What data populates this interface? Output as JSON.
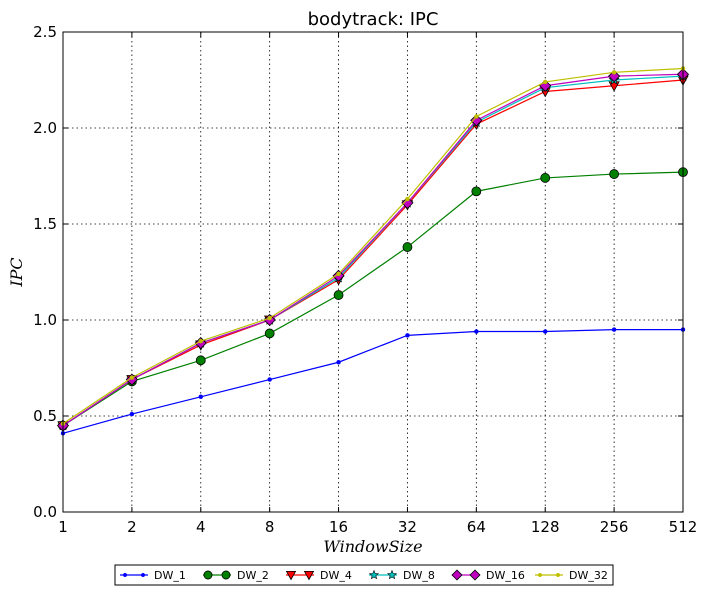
{
  "chart_data": {
    "type": "line",
    "title": "bodytrack: IPC",
    "xlabel": "WindowSize",
    "ylabel": "IPC",
    "x_scale": "log2",
    "categories": [
      "1",
      "2",
      "4",
      "8",
      "16",
      "32",
      "64",
      "128",
      "256",
      "512"
    ],
    "x": [
      1,
      2,
      4,
      8,
      16,
      32,
      64,
      128,
      256,
      512
    ],
    "ylim": [
      0.0,
      2.5
    ],
    "yticks": [
      "0.0",
      "0.5",
      "1.0",
      "1.5",
      "2.0",
      "2.5"
    ],
    "grid": true,
    "legend_position": "bottom",
    "series": [
      {
        "name": "DW_1",
        "color": "#0000ff",
        "marker": "point",
        "values": [
          0.41,
          0.51,
          0.6,
          0.69,
          0.78,
          0.92,
          0.94,
          0.94,
          0.95,
          0.95
        ]
      },
      {
        "name": "DW_2",
        "color": "#008000",
        "marker": "circle",
        "values": [
          0.45,
          0.68,
          0.79,
          0.93,
          1.13,
          1.38,
          1.67,
          1.74,
          1.76,
          1.77
        ]
      },
      {
        "name": "DW_4",
        "color": "#ff0000",
        "marker": "triangle",
        "values": [
          0.45,
          0.69,
          0.87,
          1.0,
          1.21,
          1.6,
          2.02,
          2.19,
          2.22,
          2.25
        ]
      },
      {
        "name": "DW_8",
        "color": "#00bfbf",
        "marker": "star",
        "values": [
          0.45,
          0.69,
          0.88,
          1.0,
          1.22,
          1.61,
          2.03,
          2.21,
          2.25,
          2.27
        ]
      },
      {
        "name": "DW_16",
        "color": "#bf00bf",
        "marker": "diamond",
        "values": [
          0.45,
          0.69,
          0.88,
          1.0,
          1.23,
          1.61,
          2.04,
          2.22,
          2.27,
          2.28
        ]
      },
      {
        "name": "DW_32",
        "color": "#bfbf00",
        "marker": "point",
        "values": [
          0.46,
          0.7,
          0.89,
          1.01,
          1.24,
          1.63,
          2.06,
          2.24,
          2.29,
          2.31
        ]
      }
    ]
  }
}
